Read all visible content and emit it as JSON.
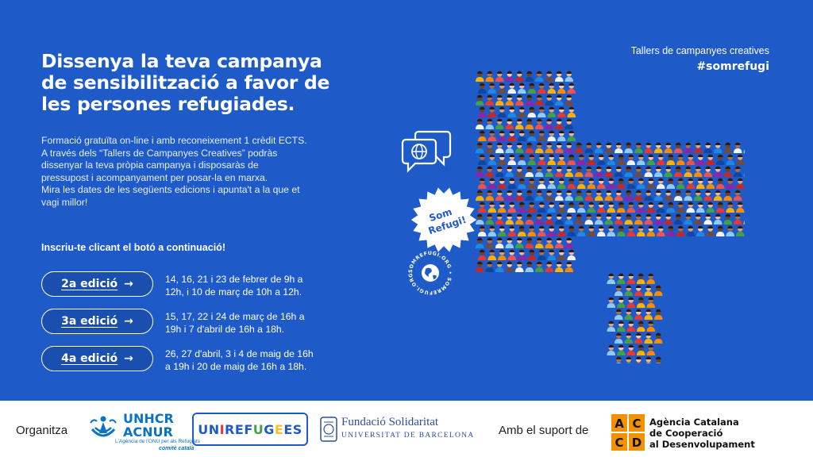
{
  "headline": {
    "lines": [
      "Dissenya la teva campanya",
      "de sensibilització a favor de",
      "les persones refugiades."
    ]
  },
  "intro": {
    "lines": [
      "Formació gratuïta on-line i amb reconeixement 1 crèdit ECTS.",
      "A través dels “Tallers de Campanyes Creatives” podràs",
      "dissenyar la teva pròpia campanya i disposaràs de",
      "pressupost i acompanyament per posar-la en marxa.",
      "Mira les dates de les següents edicions i apunta't a la que et",
      "vagi millor!"
    ]
  },
  "cta": "Inscriu-te clicant el botó a continuació!",
  "editions": [
    {
      "label": "2a edició",
      "dates": [
        "14, 16, 21 i 23 de febrer de 9h a",
        "12h, i 10 de març de 10h a 12h."
      ]
    },
    {
      "label": "3a edició",
      "dates": [
        "15, 17, 22 i 24 de març de 16h a",
        "19h i 7 d'abril de 16h a 18h."
      ]
    },
    {
      "label": "4a edició",
      "dates": [
        "26, 27 d'abril, 3 i 4 de maig de 16h",
        "a 19h i 20 de maig de 16h a 18h."
      ]
    }
  ],
  "arrow_glyph": "→",
  "tagline": {
    "line1": "Tallers de campanyes creatives",
    "hashtag": "#somrefugi"
  },
  "sticker": {
    "line1": "Som",
    "line2": "Refugi!"
  },
  "stamp_text": "SOMREFUGI.ORG • SOMREFUGI.ORG •",
  "footer": {
    "organitza": "Organitza",
    "unhcr": {
      "line1": "UNHCR",
      "line2": "ACNUR",
      "sub": "L'Agència de l'ONU per als Refugiats",
      "committee": "comitè català"
    },
    "unirefugees": [
      {
        "ch": "U",
        "color": "#1f5bc8"
      },
      {
        "ch": "N",
        "color": "#1f5bc8"
      },
      {
        "ch": "I",
        "color": "#e53935"
      },
      {
        "ch": "R",
        "color": "#1f5bc8"
      },
      {
        "ch": "E",
        "color": "#1f5bc8"
      },
      {
        "ch": "F",
        "color": "#1f5bc8"
      },
      {
        "ch": "U",
        "color": "#43a047"
      },
      {
        "ch": "G",
        "color": "#1f5bc8"
      },
      {
        "ch": "E",
        "color": "#fbc02d"
      },
      {
        "ch": "E",
        "color": "#1f5bc8"
      },
      {
        "ch": "S",
        "color": "#1f5bc8"
      }
    ],
    "fundacio": {
      "line1": "Fundació Solidaritat",
      "line2": "UNIVERSITAT DE BARCELONA"
    },
    "amb_suport": "Amb el suport de",
    "accd": {
      "line1": "Agència Catalana",
      "line2": "de Cooperació",
      "line3": "al Desenvolupament",
      "letters": [
        "A",
        "C",
        "C",
        "D"
      ]
    }
  },
  "colors": {
    "banner": "#1f5bc8",
    "accd_orange": "#f39200"
  }
}
